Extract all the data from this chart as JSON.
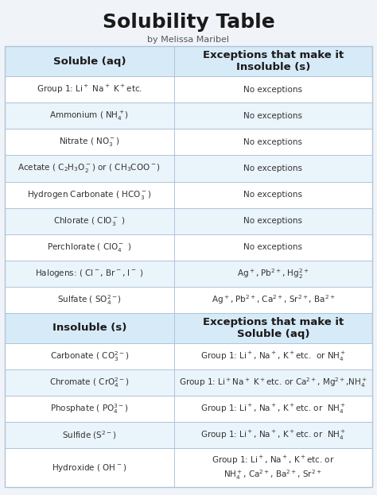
{
  "title": "Solubility Table",
  "subtitle": "by Melissa Maribel",
  "title_fontsize": 18,
  "subtitle_fontsize": 8,
  "bg_color": "#f0f4f8",
  "header_bg": "#d6eaf8",
  "row_alt_bg": "#eaf4fb",
  "row_normal_bg": "#ffffff",
  "divider_color": "#b0c4d8",
  "header_text_color": "#1a1a1a",
  "cell_text_color": "#333333",
  "col_split": 0.46,
  "soluble_rows": [
    {
      "left": "Group 1: Li$^+$ Na$^+$ K$^+$etc.",
      "right": "No exceptions",
      "alt": false
    },
    {
      "left": "Ammonium ( NH$_4^+$)",
      "right": "No exceptions",
      "alt": true
    },
    {
      "left": "Nitrate ( NO$_3^-$)",
      "right": "No exceptions",
      "alt": false
    },
    {
      "left": "Acetate ( C$_2$H$_3$O$_2^-$) or ( CH$_3$COO$^-$)",
      "right": "No exceptions",
      "alt": true
    },
    {
      "left": "Hydrogen Carbonate ( HCO$_3^-$)",
      "right": "No exceptions",
      "alt": false
    },
    {
      "left": "Chlorate ( ClO$_3^-$ )",
      "right": "No exceptions",
      "alt": true
    },
    {
      "left": "Perchlorate ( ClO$_4^-$ )",
      "right": "No exceptions",
      "alt": false
    },
    {
      "left": "Halogens: ( Cl$^-$, Br$^-$, I$^-$ )",
      "right": "Ag$^+$, Pb$^{2+}$, Hg$_2^{2+}$",
      "alt": true
    },
    {
      "left": "Sulfate ( SO$_4^{2-}$)",
      "right": "Ag$^+$, Pb$^{2+}$, Ca$^{2+}$, Sr$^{2+}$, Ba$^{2+}$",
      "alt": false
    }
  ],
  "insoluble_rows": [
    {
      "left": "Carbonate ( CO$_3^{2-}$)",
      "right": "Group 1: Li$^+$, Na$^+$, K$^+$etc.  or NH$_4^+$",
      "alt": false
    },
    {
      "left": "Chromate ( CrO$_4^{2-}$)",
      "right": "Group 1: Li$^+$Na$^+$ K$^+$etc. or Ca$^{2+}$, Mg$^{2+}$,NH$_4^+$",
      "alt": true
    },
    {
      "left": "Phosphate ( PO$_4^{3-}$)",
      "right": "Group 1: Li$^+$, Na$^+$, K$^+$etc. or  NH$_4^+$",
      "alt": false
    },
    {
      "left": "Sulfide (S$^{2-}$)",
      "right": "Group 1: Li$^+$, Na$^+$, K$^+$etc. or  NH$_4^+$",
      "alt": true
    },
    {
      "left": "Hydroxide ( OH$^-$)",
      "right": "Group 1: Li$^+$, Na$^+$, K$^+$etc. or\nNH$_4^+$, Ca$^{2+}$, Ba$^{2+}$, Sr$^{2+}$",
      "alt": false
    }
  ]
}
